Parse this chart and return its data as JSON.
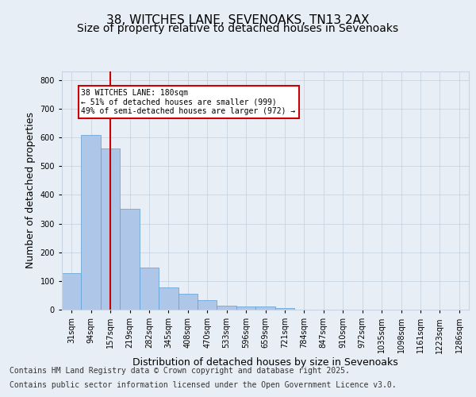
{
  "title_line1": "38, WITCHES LANE, SEVENOAKS, TN13 2AX",
  "title_line2": "Size of property relative to detached houses in Sevenoaks",
  "xlabel": "Distribution of detached houses by size in Sevenoaks",
  "ylabel": "Number of detached properties",
  "categories": [
    "31sqm",
    "94sqm",
    "157sqm",
    "219sqm",
    "282sqm",
    "345sqm",
    "408sqm",
    "470sqm",
    "533sqm",
    "596sqm",
    "659sqm",
    "721sqm",
    "784sqm",
    "847sqm",
    "910sqm",
    "972sqm",
    "1035sqm",
    "1098sqm",
    "1161sqm",
    "1223sqm",
    "1286sqm"
  ],
  "values": [
    128,
    608,
    562,
    352,
    148,
    78,
    55,
    33,
    14,
    11,
    11,
    5,
    0,
    0,
    0,
    0,
    0,
    0,
    0,
    0,
    0
  ],
  "bar_color": "#aec6e8",
  "bar_edge_color": "#5a9fd4",
  "vline_color": "#cc0000",
  "vline_position": 2.5,
  "annotation_text": "38 WITCHES LANE: 180sqm\n← 51% of detached houses are smaller (999)\n49% of semi-detached houses are larger (972) →",
  "box_color": "#cc0000",
  "footer_line1": "Contains HM Land Registry data © Crown copyright and database right 2025.",
  "footer_line2": "Contains public sector information licensed under the Open Government Licence v3.0.",
  "ylim": [
    0,
    830
  ],
  "yticks": [
    0,
    100,
    200,
    300,
    400,
    500,
    600,
    700,
    800
  ],
  "bg_color": "#e8eef5",
  "grid_color": "#c8d4e3",
  "title_fontsize": 11,
  "subtitle_fontsize": 10,
  "tick_fontsize": 7,
  "label_fontsize": 9,
  "footer_fontsize": 7
}
